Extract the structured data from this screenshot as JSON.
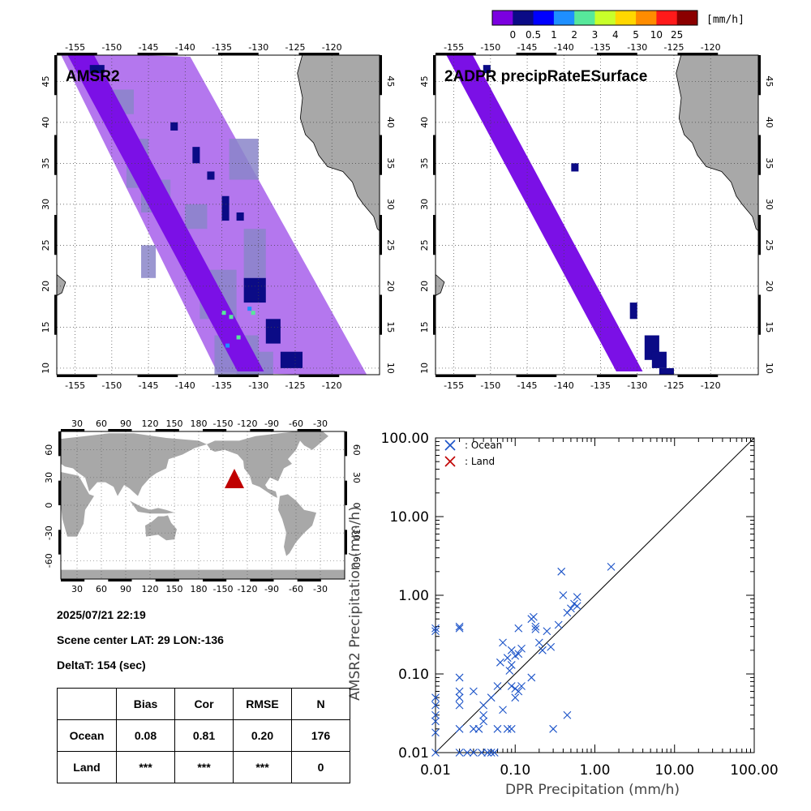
{
  "colorbar": {
    "unit": "[mm/h]",
    "labels": [
      "0",
      "0.5",
      "1",
      "2",
      "3",
      "4",
      "5",
      "10",
      "25"
    ],
    "colors": [
      "#7b00e0",
      "#0b0b86",
      "#0000ff",
      "#1e8fff",
      "#57e89b",
      "#c8ff2a",
      "#ffd700",
      "#ff8c00",
      "#ff1a1a",
      "#8b0000"
    ]
  },
  "panels": {
    "left_title": "AMSR2",
    "right_title": "2ADPR precipRateESurface",
    "lon_ticks": [
      "-155",
      "-150",
      "-145",
      "-140",
      "-135",
      "-130",
      "-125",
      "-120"
    ],
    "lat_ticks": [
      "45",
      "40",
      "35",
      "30",
      "25",
      "20",
      "15",
      "10"
    ],
    "swath_colors": {
      "wide": "#b477ee",
      "wide_gray": "#8a85c9",
      "narrow": "#7b10e6",
      "heavy": "#0b0b86",
      "light": "#1e8fff",
      "bright": "#57e89b",
      "land": "#a8a8a8"
    }
  },
  "worldmap": {
    "top_lon_ticks": [
      "30",
      "60",
      "90",
      "120",
      "150",
      "180",
      "-150",
      "-120",
      "-90",
      "-60",
      "-30"
    ],
    "bottom_lon_ticks": [
      "30",
      "60",
      "90",
      "120",
      "150",
      "180",
      "-150",
      "-120",
      "-90",
      "-60",
      "-30"
    ],
    "lat_ticks": [
      "60",
      "30",
      "0",
      "-30",
      "-60"
    ],
    "marker_color": "#c00000"
  },
  "info": {
    "datetime": "2025/07/21 22:19",
    "scene_center": "Scene center LAT: 29   LON:-136",
    "deltat": "DeltaT:  154 (sec)"
  },
  "stats_table": {
    "headers": [
      "",
      "Bias",
      "Cor",
      "RMSE",
      "N"
    ],
    "rows": [
      [
        "Ocean",
        "0.08",
        "0.81",
        "0.20",
        "176"
      ],
      [
        "Land",
        "***",
        "***",
        "***",
        "0"
      ]
    ]
  },
  "chart_data": {
    "type": "scatter",
    "xlabel": "DPR Precipitation (mm/h)",
    "ylabel": "AMSR2 Precipitation (mm/h)",
    "xlim": [
      0.01,
      100
    ],
    "ylim": [
      0.01,
      100
    ],
    "xscale": "log",
    "yscale": "log",
    "x_tick_labels": [
      "0.01",
      "0.10",
      "1.00",
      "10.00",
      "100.00"
    ],
    "y_tick_labels": [
      "0.01",
      "0.10",
      "1.00",
      "10.00",
      "100.00"
    ],
    "legend_position": "top-left",
    "series": [
      {
        "name": ": Ocean",
        "color": "#1a52c8",
        "points": [
          [
            0.01,
            0.01
          ],
          [
            0.01,
            0.018
          ],
          [
            0.01,
            0.025
          ],
          [
            0.01,
            0.03
          ],
          [
            0.01,
            0.04
          ],
          [
            0.01,
            0.05
          ],
          [
            0.01,
            0.35
          ],
          [
            0.01,
            0.38
          ],
          [
            0.02,
            0.01
          ],
          [
            0.02,
            0.02
          ],
          [
            0.02,
            0.04
          ],
          [
            0.02,
            0.05
          ],
          [
            0.02,
            0.06
          ],
          [
            0.02,
            0.09
          ],
          [
            0.02,
            0.38
          ],
          [
            0.02,
            0.4
          ],
          [
            0.025,
            0.01
          ],
          [
            0.03,
            0.01
          ],
          [
            0.03,
            0.02
          ],
          [
            0.03,
            0.06
          ],
          [
            0.035,
            0.02
          ],
          [
            0.038,
            0.01
          ],
          [
            0.04,
            0.025
          ],
          [
            0.04,
            0.03
          ],
          [
            0.04,
            0.04
          ],
          [
            0.045,
            0.01
          ],
          [
            0.05,
            0.01
          ],
          [
            0.05,
            0.05
          ],
          [
            0.055,
            0.01
          ],
          [
            0.06,
            0.02
          ],
          [
            0.06,
            0.07
          ],
          [
            0.065,
            0.14
          ],
          [
            0.07,
            0.035
          ],
          [
            0.07,
            0.25
          ],
          [
            0.08,
            0.02
          ],
          [
            0.08,
            0.16
          ],
          [
            0.085,
            0.11
          ],
          [
            0.09,
            0.02
          ],
          [
            0.09,
            0.07
          ],
          [
            0.09,
            0.13
          ],
          [
            0.09,
            0.2
          ],
          [
            0.1,
            0.05
          ],
          [
            0.1,
            0.065
          ],
          [
            0.1,
            0.17
          ],
          [
            0.11,
            0.06
          ],
          [
            0.11,
            0.18
          ],
          [
            0.11,
            0.38
          ],
          [
            0.12,
            0.07
          ],
          [
            0.12,
            0.21
          ],
          [
            0.16,
            0.09
          ],
          [
            0.16,
            0.5
          ],
          [
            0.17,
            0.53
          ],
          [
            0.18,
            0.4
          ],
          [
            0.18,
            0.37
          ],
          [
            0.2,
            0.25
          ],
          [
            0.22,
            0.2
          ],
          [
            0.25,
            0.35
          ],
          [
            0.28,
            0.22
          ],
          [
            0.3,
            0.02
          ],
          [
            0.35,
            0.42
          ],
          [
            0.38,
            2.0
          ],
          [
            0.4,
            1.0
          ],
          [
            0.45,
            0.03
          ],
          [
            0.45,
            0.6
          ],
          [
            0.5,
            0.68
          ],
          [
            0.55,
            0.78
          ],
          [
            0.6,
            0.73
          ],
          [
            0.6,
            0.95
          ],
          [
            1.6,
            2.3
          ]
        ]
      },
      {
        "name": ": Land",
        "color": "#c00000",
        "points": []
      }
    ]
  }
}
